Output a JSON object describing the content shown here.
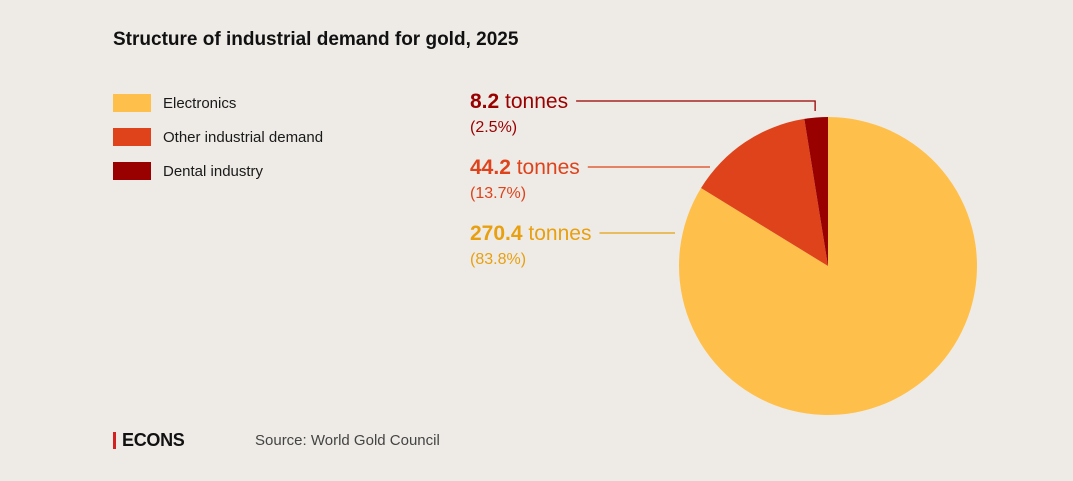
{
  "chart_data": {
    "type": "pie",
    "title": "Structure of industrial demand for gold, 2025",
    "unit": "tonnes",
    "slices": [
      {
        "name": "Electronics",
        "value": 270.4,
        "percent": "83.8%",
        "color": "#ffc04b",
        "label_color": "#e8a010"
      },
      {
        "name": "Other industrial demand",
        "value": 44.2,
        "percent": "13.7%",
        "color": "#de431b",
        "label_color": "#de431b"
      },
      {
        "name": "Dental industry",
        "value": 8.2,
        "percent": "2.5%",
        "color": "#990000",
        "label_color": "#990000"
      }
    ],
    "start_angle": "top",
    "direction": "clockwise",
    "legend_position": "top-left"
  },
  "labels": [
    {
      "value": "8.2",
      "unit": "tonnes",
      "percent": "(2.5%)"
    },
    {
      "value": "44.2",
      "unit": "tonnes",
      "percent": "(13.7%)"
    },
    {
      "value": "270.4",
      "unit": "tonnes",
      "percent": "(83.8%)"
    }
  ],
  "footer": {
    "logo": "ECONS",
    "source": "Source: World Gold Council"
  }
}
